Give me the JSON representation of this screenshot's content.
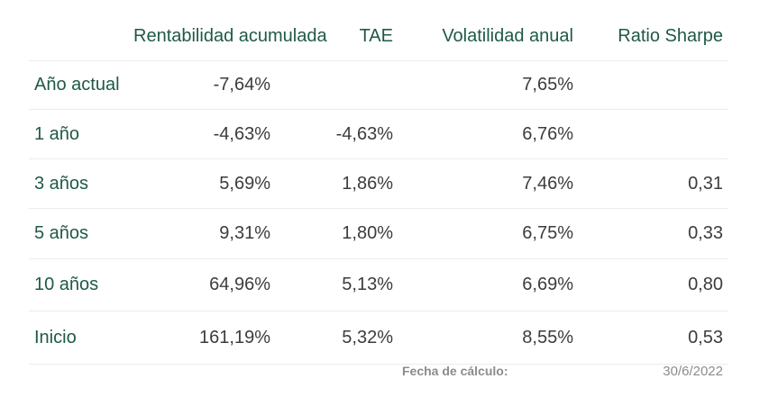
{
  "table": {
    "headers": [
      "",
      "Rentabilidad acumulada",
      "TAE",
      "Volatilidad anual",
      "Ratio Sharpe"
    ],
    "rows": [
      {
        "label": "Año actual",
        "rentabilidad": "-7,64%",
        "tae": "",
        "volatilidad": "7,65%",
        "sharpe": ""
      },
      {
        "label": "1 año",
        "rentabilidad": "-4,63%",
        "tae": "-4,63%",
        "volatilidad": "6,76%",
        "sharpe": ""
      },
      {
        "label": "3 años",
        "rentabilidad": "5,69%",
        "tae": "1,86%",
        "volatilidad": "7,46%",
        "sharpe": "0,31"
      },
      {
        "label": "5 años",
        "rentabilidad": "9,31%",
        "tae": "1,80%",
        "volatilidad": "6,75%",
        "sharpe": "0,33"
      },
      {
        "label": "10 años",
        "rentabilidad": "64,96%",
        "tae": "5,13%",
        "volatilidad": "6,69%",
        "sharpe": "0,80"
      },
      {
        "label": "Inicio",
        "rentabilidad": "161,19%",
        "tae": "5,32%",
        "volatilidad": "8,55%",
        "sharpe": "0,53"
      }
    ]
  },
  "footer": {
    "label": "Fecha de cálculo:",
    "value": "30/6/2022"
  },
  "colors": {
    "accent": "#1f5a43",
    "text": "#3c3c3c",
    "muted": "#8c8c8c",
    "divider": "#ececec"
  }
}
